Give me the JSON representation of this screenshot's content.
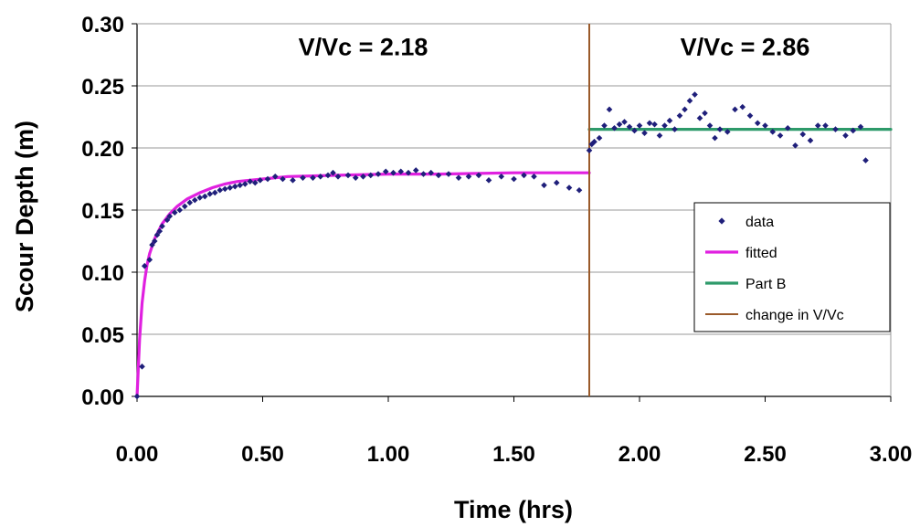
{
  "chart_data": {
    "type": "scatter",
    "xlabel": "Time (hrs)",
    "ylabel": "Scour Depth (m)",
    "xlim": [
      0,
      3.0
    ],
    "ylim": [
      0,
      0.3
    ],
    "xticks": [
      "0.00",
      "0.50",
      "1.00",
      "1.50",
      "2.00",
      "2.50",
      "3.00"
    ],
    "yticks": [
      "0.00",
      "0.05",
      "0.10",
      "0.15",
      "0.20",
      "0.25",
      "0.30"
    ],
    "grid": "horizontal",
    "legend_position": "right-middle",
    "annotations": [
      {
        "text": "V/Vc = 2.18",
        "x": 0.9,
        "y": 0.282
      },
      {
        "text": "V/Vc = 2.86",
        "x": 2.42,
        "y": 0.282
      }
    ],
    "series": [
      {
        "name": "data",
        "kind": "scatter",
        "color": "#1f1f7a",
        "points": [
          [
            0.0,
            0.0
          ],
          [
            0.02,
            0.024
          ],
          [
            0.03,
            0.105
          ],
          [
            0.05,
            0.11
          ],
          [
            0.06,
            0.122
          ],
          [
            0.07,
            0.125
          ],
          [
            0.08,
            0.13
          ],
          [
            0.09,
            0.133
          ],
          [
            0.1,
            0.137
          ],
          [
            0.12,
            0.142
          ],
          [
            0.13,
            0.145
          ],
          [
            0.15,
            0.148
          ],
          [
            0.17,
            0.15
          ],
          [
            0.19,
            0.153
          ],
          [
            0.21,
            0.156
          ],
          [
            0.23,
            0.158
          ],
          [
            0.25,
            0.16
          ],
          [
            0.27,
            0.161
          ],
          [
            0.29,
            0.163
          ],
          [
            0.31,
            0.164
          ],
          [
            0.33,
            0.166
          ],
          [
            0.35,
            0.167
          ],
          [
            0.37,
            0.168
          ],
          [
            0.39,
            0.169
          ],
          [
            0.41,
            0.17
          ],
          [
            0.43,
            0.171
          ],
          [
            0.45,
            0.173
          ],
          [
            0.47,
            0.172
          ],
          [
            0.49,
            0.174
          ],
          [
            0.52,
            0.175
          ],
          [
            0.55,
            0.177
          ],
          [
            0.58,
            0.175
          ],
          [
            0.62,
            0.174
          ],
          [
            0.66,
            0.176
          ],
          [
            0.7,
            0.176
          ],
          [
            0.73,
            0.177
          ],
          [
            0.76,
            0.178
          ],
          [
            0.78,
            0.18
          ],
          [
            0.8,
            0.177
          ],
          [
            0.84,
            0.178
          ],
          [
            0.87,
            0.176
          ],
          [
            0.9,
            0.177
          ],
          [
            0.93,
            0.178
          ],
          [
            0.96,
            0.179
          ],
          [
            0.99,
            0.181
          ],
          [
            1.02,
            0.18
          ],
          [
            1.05,
            0.181
          ],
          [
            1.08,
            0.18
          ],
          [
            1.11,
            0.182
          ],
          [
            1.14,
            0.179
          ],
          [
            1.17,
            0.18
          ],
          [
            1.2,
            0.178
          ],
          [
            1.24,
            0.179
          ],
          [
            1.28,
            0.176
          ],
          [
            1.32,
            0.177
          ],
          [
            1.36,
            0.178
          ],
          [
            1.4,
            0.174
          ],
          [
            1.45,
            0.177
          ],
          [
            1.5,
            0.175
          ],
          [
            1.54,
            0.178
          ],
          [
            1.58,
            0.177
          ],
          [
            1.62,
            0.17
          ],
          [
            1.67,
            0.172
          ],
          [
            1.72,
            0.168
          ],
          [
            1.76,
            0.166
          ],
          [
            1.8,
            0.198
          ],
          [
            1.81,
            0.203
          ],
          [
            1.82,
            0.205
          ],
          [
            1.84,
            0.208
          ],
          [
            1.86,
            0.218
          ],
          [
            1.88,
            0.231
          ],
          [
            1.9,
            0.216
          ],
          [
            1.92,
            0.219
          ],
          [
            1.94,
            0.221
          ],
          [
            1.96,
            0.217
          ],
          [
            1.98,
            0.214
          ],
          [
            2.0,
            0.218
          ],
          [
            2.02,
            0.212
          ],
          [
            2.04,
            0.22
          ],
          [
            2.06,
            0.219
          ],
          [
            2.08,
            0.21
          ],
          [
            2.1,
            0.218
          ],
          [
            2.12,
            0.222
          ],
          [
            2.14,
            0.215
          ],
          [
            2.16,
            0.226
          ],
          [
            2.18,
            0.231
          ],
          [
            2.2,
            0.238
          ],
          [
            2.22,
            0.243
          ],
          [
            2.24,
            0.224
          ],
          [
            2.26,
            0.228
          ],
          [
            2.28,
            0.218
          ],
          [
            2.3,
            0.208
          ],
          [
            2.32,
            0.215
          ],
          [
            2.35,
            0.213
          ],
          [
            2.38,
            0.231
          ],
          [
            2.41,
            0.233
          ],
          [
            2.44,
            0.226
          ],
          [
            2.47,
            0.22
          ],
          [
            2.5,
            0.218
          ],
          [
            2.53,
            0.213
          ],
          [
            2.56,
            0.21
          ],
          [
            2.59,
            0.216
          ],
          [
            2.62,
            0.202
          ],
          [
            2.65,
            0.211
          ],
          [
            2.68,
            0.206
          ],
          [
            2.71,
            0.218
          ],
          [
            2.74,
            0.218
          ],
          [
            2.78,
            0.215
          ],
          [
            2.82,
            0.21
          ],
          [
            2.85,
            0.214
          ],
          [
            2.88,
            0.217
          ],
          [
            2.9,
            0.19
          ]
        ]
      },
      {
        "name": "fitted",
        "kind": "line",
        "color": "#e020e0",
        "points": [
          [
            0.0,
            0.0
          ],
          [
            0.01,
            0.046
          ],
          [
            0.02,
            0.075
          ],
          [
            0.03,
            0.093
          ],
          [
            0.04,
            0.106
          ],
          [
            0.05,
            0.115
          ],
          [
            0.07,
            0.127
          ],
          [
            0.1,
            0.139
          ],
          [
            0.13,
            0.147
          ],
          [
            0.16,
            0.153
          ],
          [
            0.2,
            0.159
          ],
          [
            0.25,
            0.164
          ],
          [
            0.3,
            0.168
          ],
          [
            0.35,
            0.171
          ],
          [
            0.4,
            0.173
          ],
          [
            0.5,
            0.175
          ],
          [
            0.6,
            0.177
          ],
          [
            0.8,
            0.178
          ],
          [
            1.0,
            0.179
          ],
          [
            1.2,
            0.179
          ],
          [
            1.5,
            0.18
          ],
          [
            1.8,
            0.18
          ]
        ]
      },
      {
        "name": "Part B",
        "kind": "line",
        "color": "#2e9a6a",
        "points": [
          [
            1.8,
            0.215
          ],
          [
            3.0,
            0.215
          ]
        ]
      },
      {
        "name": "change in V/Vc",
        "kind": "vline",
        "color": "#9a5a2a",
        "x": 1.8
      }
    ]
  }
}
